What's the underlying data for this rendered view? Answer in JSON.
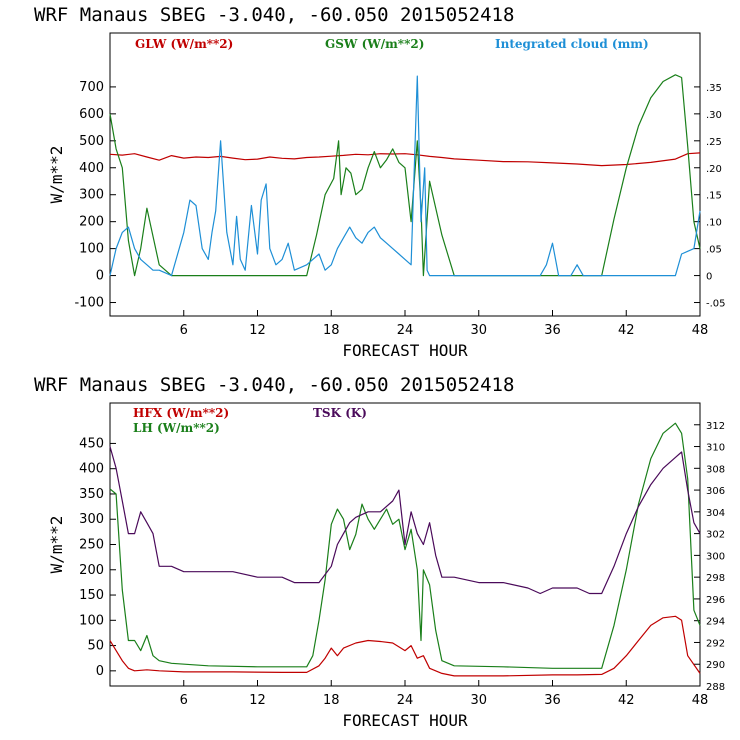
{
  "chart_data": [
    {
      "type": "line",
      "title": "WRF  Manaus SBEG   -3.040, -60.050  2015052418",
      "xlabel": "FORECAST HOUR",
      "ylabel": "W/m**2",
      "xlim": [
        0,
        48
      ],
      "ylim": [
        -150,
        900
      ],
      "y2lim": [
        -0.075,
        0.45
      ],
      "x_ticks": [
        6,
        12,
        18,
        24,
        30,
        36,
        42,
        48
      ],
      "y_ticks": [
        -100,
        0,
        100,
        200,
        300,
        400,
        500,
        600,
        700
      ],
      "y2_ticks": [
        -0.05,
        0,
        0.05,
        0.1,
        0.15,
        0.2,
        0.25,
        0.3,
        0.35
      ],
      "y2_tick_labels": [
        "-.05",
        "0",
        ".05",
        ".10",
        ".15",
        ".20",
        ".25",
        ".30",
        ".35"
      ],
      "series": [
        {
          "name": "GLW (W/m**2)",
          "color": "#c00000",
          "axis": "left",
          "x": [
            0,
            1,
            2,
            3,
            4,
            5,
            6,
            7,
            8,
            9,
            10,
            11,
            12,
            13,
            14,
            15,
            16,
            17,
            18,
            19,
            20,
            21,
            22,
            23,
            24,
            25,
            26,
            27,
            28,
            30,
            32,
            34,
            36,
            38,
            40,
            42,
            44,
            46,
            47,
            48
          ],
          "y": [
            450,
            447,
            452,
            440,
            428,
            445,
            436,
            440,
            438,
            442,
            436,
            430,
            432,
            440,
            435,
            433,
            438,
            440,
            443,
            446,
            450,
            448,
            452,
            451,
            452,
            448,
            442,
            438,
            433,
            428,
            423,
            422,
            418,
            414,
            408,
            412,
            420,
            432,
            452,
            455
          ]
        },
        {
          "name": "GSW (W/m**2)",
          "color": "#1a7f1a",
          "axis": "left",
          "x": [
            0,
            0.5,
            1,
            1.5,
            2,
            2.5,
            3,
            4,
            5,
            16,
            16.8,
            17.5,
            18.2,
            18.6,
            18.8,
            19.2,
            19.6,
            20,
            20.5,
            21,
            21.5,
            22,
            22.5,
            23,
            23.5,
            24,
            24.5,
            25,
            25.3,
            25.5,
            26,
            27,
            28,
            40,
            41,
            42,
            43,
            44,
            45,
            46,
            46.5,
            47,
            47.5,
            48
          ],
          "y": [
            600,
            470,
            400,
            130,
            0,
            100,
            250,
            40,
            0,
            0,
            150,
            300,
            360,
            500,
            300,
            400,
            380,
            300,
            320,
            400,
            460,
            400,
            430,
            470,
            420,
            400,
            200,
            500,
            250,
            0,
            350,
            150,
            0,
            0,
            210,
            400,
            555,
            660,
            720,
            745,
            735,
            480,
            200,
            100
          ]
        },
        {
          "name": "Integrated cloud (mm)",
          "color": "#1e8fd6",
          "axis": "right",
          "x": [
            0,
            0.5,
            1,
            1.5,
            2,
            2.5,
            3,
            3.5,
            4,
            5,
            6,
            6.5,
            7,
            7.5,
            8,
            8.3,
            8.6,
            9,
            9.5,
            10,
            10.3,
            10.6,
            11,
            11.5,
            12,
            12.3,
            12.7,
            13,
            13.5,
            14,
            14.5,
            15,
            16,
            17,
            17.5,
            18,
            18.5,
            19,
            19.5,
            20,
            20.5,
            21,
            21.5,
            22,
            22.5,
            23,
            23.5,
            24,
            24.5,
            25,
            25.3,
            25.6,
            25.8,
            26,
            30,
            35,
            35.5,
            36,
            36.5,
            37,
            37.5,
            38,
            38.5,
            39,
            40,
            42,
            44,
            46,
            46.5,
            47,
            47.5,
            48
          ],
          "y": [
            0,
            0.05,
            0.08,
            0.09,
            0.05,
            0.03,
            0.02,
            0.01,
            0.01,
            0,
            0.08,
            0.14,
            0.13,
            0.05,
            0.03,
            0.08,
            0.12,
            0.25,
            0.08,
            0.02,
            0.11,
            0.03,
            0.01,
            0.13,
            0.04,
            0.14,
            0.17,
            0.05,
            0.02,
            0.03,
            0.06,
            0.01,
            0.02,
            0.04,
            0.01,
            0.02,
            0.05,
            0.07,
            0.09,
            0.07,
            0.06,
            0.08,
            0.09,
            0.07,
            0.06,
            0.05,
            0.04,
            0.03,
            0.02,
            0.37,
            0.1,
            0.2,
            0.01,
            0,
            0,
            0,
            0.02,
            0.06,
            0,
            0,
            0,
            0.02,
            0,
            0,
            0,
            0,
            0,
            0,
            0.04,
            0.045,
            0.05,
            0.12
          ]
        }
      ]
    },
    {
      "type": "line",
      "title": "WRF  Manaus SBEG   -3.040, -60.050  2015052418",
      "xlabel": "FORECAST HOUR",
      "ylabel": "W/m**2",
      "xlim": [
        0,
        48
      ],
      "ylim": [
        -30,
        530
      ],
      "y2lim": [
        288,
        314
      ],
      "x_ticks": [
        6,
        12,
        18,
        24,
        30,
        36,
        42,
        48
      ],
      "y_ticks": [
        0,
        50,
        100,
        150,
        200,
        250,
        300,
        350,
        400,
        450
      ],
      "y2_ticks": [
        288,
        290,
        292,
        294,
        296,
        298,
        300,
        302,
        304,
        306,
        308,
        310,
        312
      ],
      "y2_tick_labels": [
        "288",
        "290",
        "292",
        "294",
        "296",
        "298",
        "300",
        "302",
        "304",
        "306",
        "308",
        "310",
        "312"
      ],
      "series": [
        {
          "name": "HFX (W/m**2)",
          "color": "#c00000",
          "axis": "left",
          "x": [
            0,
            0.5,
            1,
            1.5,
            2,
            3,
            4,
            6,
            10,
            14,
            16,
            17,
            17.5,
            18,
            18.5,
            19,
            20,
            21,
            22,
            23,
            24,
            24.5,
            25,
            25.5,
            26,
            27,
            28,
            32,
            36,
            38,
            40,
            41,
            42,
            43,
            44,
            45,
            46,
            46.5,
            47,
            48
          ],
          "y": [
            60,
            40,
            20,
            5,
            0,
            2,
            0,
            -2,
            -2,
            -3,
            -3,
            10,
            25,
            45,
            30,
            45,
            55,
            60,
            58,
            55,
            40,
            50,
            25,
            30,
            5,
            -5,
            -10,
            -10,
            -8,
            -8,
            -7,
            5,
            30,
            60,
            90,
            105,
            108,
            100,
            30,
            -5
          ]
        },
        {
          "name": "LH (W/m**2)",
          "color": "#1a7f1a",
          "axis": "left",
          "x": [
            0,
            0.5,
            1,
            1.5,
            2,
            2.5,
            3,
            3.5,
            4,
            5,
            8,
            12,
            16,
            16.5,
            17,
            17.5,
            18,
            18.5,
            19,
            19.5,
            20,
            20.5,
            21,
            21.5,
            22,
            22.5,
            23,
            23.5,
            24,
            24.5,
            25,
            25.3,
            25.5,
            26,
            26.5,
            27,
            28,
            32,
            36,
            40,
            41,
            42,
            43,
            44,
            45,
            46,
            46.5,
            47,
            47.5,
            48
          ],
          "y": [
            360,
            350,
            160,
            60,
            60,
            40,
            70,
            30,
            20,
            15,
            10,
            8,
            8,
            30,
            100,
            180,
            290,
            320,
            300,
            240,
            270,
            330,
            300,
            280,
            300,
            320,
            290,
            300,
            240,
            280,
            200,
            60,
            200,
            170,
            80,
            20,
            10,
            8,
            5,
            5,
            90,
            200,
            330,
            420,
            470,
            490,
            470,
            380,
            120,
            90
          ]
        },
        {
          "name": "TSK (K)",
          "color": "#4a0a5a",
          "axis": "right",
          "x": [
            0,
            0.5,
            1,
            1.5,
            2,
            2.5,
            3,
            3.5,
            4,
            5,
            6,
            8,
            10,
            12,
            14,
            15,
            16,
            17,
            18,
            18.5,
            19,
            19.5,
            20,
            21,
            22,
            23,
            23.5,
            24,
            24.5,
            25,
            25.5,
            26,
            26.5,
            27,
            28,
            30,
            32,
            34,
            35,
            36,
            38,
            39,
            40,
            41,
            42,
            43,
            44,
            45,
            46,
            46.5,
            47,
            47.5,
            48
          ],
          "y": [
            310,
            308,
            305,
            302,
            302,
            304,
            303,
            302,
            299,
            299,
            298.5,
            298.5,
            298.5,
            298,
            298,
            297.5,
            297.5,
            297.5,
            299,
            301,
            302,
            303,
            303.5,
            304,
            304,
            305,
            306,
            301,
            304,
            302,
            301,
            303,
            300,
            298,
            298,
            297.5,
            297.5,
            297,
            296.5,
            297,
            297,
            296.5,
            296.5,
            299,
            302,
            304.5,
            306.5,
            308,
            309,
            309.5,
            306,
            303,
            302
          ]
        }
      ]
    }
  ]
}
